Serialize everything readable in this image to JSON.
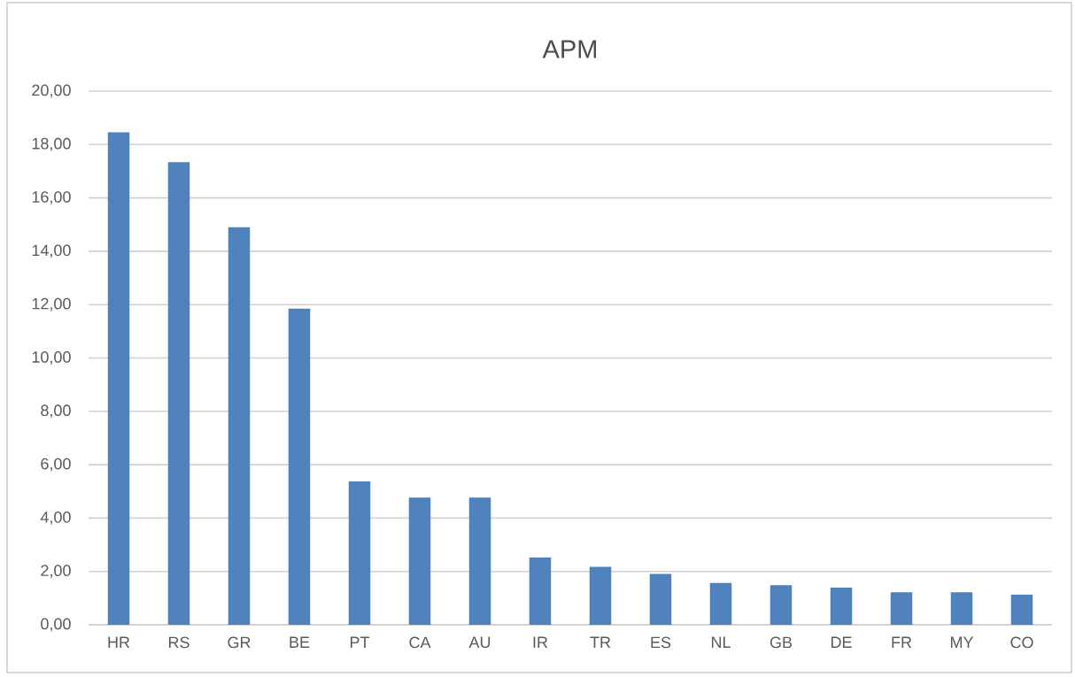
{
  "chart_data": {
    "type": "bar",
    "title": "APM",
    "categories": [
      "HR",
      "RS",
      "GR",
      "BE",
      "PT",
      "CA",
      "AU",
      "IR",
      "TR",
      "ES",
      "NL",
      "GB",
      "DE",
      "FR",
      "MY",
      "CO"
    ],
    "values": [
      18.46,
      17.34,
      14.9,
      11.85,
      5.37,
      4.77,
      4.77,
      2.52,
      2.17,
      1.91,
      1.57,
      1.48,
      1.39,
      1.22,
      1.22,
      1.13
    ],
    "color": "#4f81bd",
    "ylim": [
      0,
      20
    ],
    "yticks": [
      {
        "value": 0,
        "label": "0,00"
      },
      {
        "value": 2,
        "label": "2,00"
      },
      {
        "value": 4,
        "label": "4,00"
      },
      {
        "value": 6,
        "label": "6,00"
      },
      {
        "value": 8,
        "label": "8,00"
      },
      {
        "value": 10,
        "label": "10,00"
      },
      {
        "value": 12,
        "label": "12,00"
      },
      {
        "value": 14,
        "label": "14,00"
      },
      {
        "value": 16,
        "label": "16,00"
      },
      {
        "value": 18,
        "label": "18,00"
      },
      {
        "value": 20,
        "label": "20,00"
      }
    ],
    "grid": "y"
  }
}
